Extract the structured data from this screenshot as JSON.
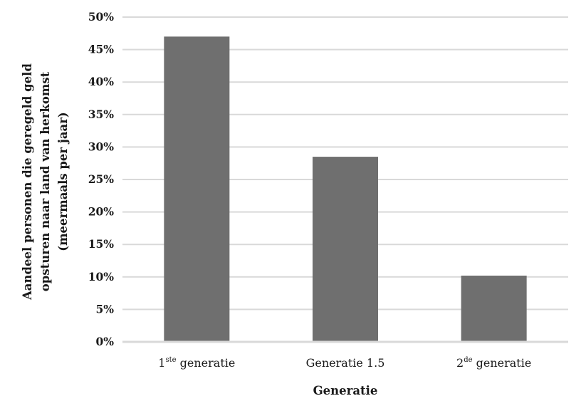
{
  "chart_data": {
    "type": "bar",
    "categories": [
      {
        "base": "1",
        "sup": "ste",
        "rest": " generatie"
      },
      {
        "base": "Generatie 1.5",
        "sup": "",
        "rest": ""
      },
      {
        "base": "2",
        "sup": "de",
        "rest": " generatie"
      }
    ],
    "values": [
      0.47,
      0.285,
      0.102
    ],
    "ylim": [
      0,
      0.5
    ],
    "yticks": [
      "0%",
      "5%",
      "10%",
      "15%",
      "20%",
      "25%",
      "30%",
      "35%",
      "40%",
      "45%",
      "50%"
    ],
    "xlabel": "Generatie",
    "ylabel_lines": [
      "Aandeel personen die geregeld geld",
      "opsturen naar land van herkomst",
      "(meermaals per jaar)"
    ],
    "grid": true,
    "colors": {
      "bar": "#6f6f6f",
      "grid": "#d9d9d9",
      "axis": "#d9d9d9"
    }
  }
}
